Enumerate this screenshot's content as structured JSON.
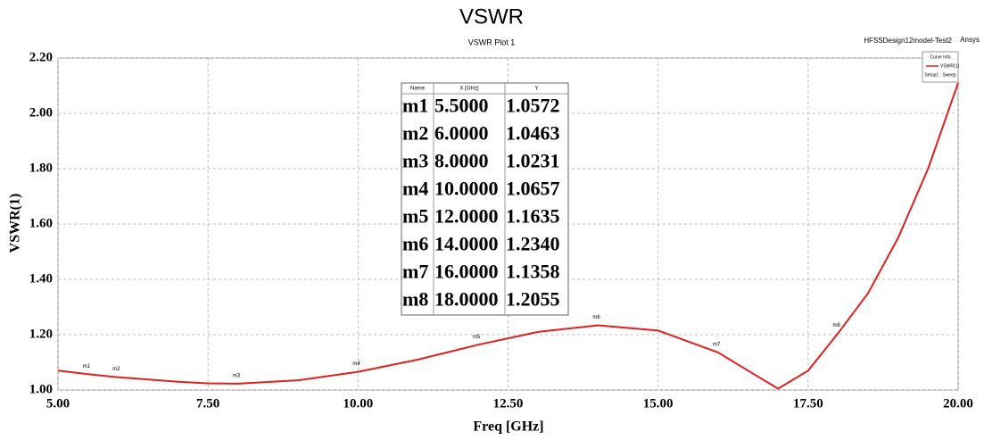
{
  "chart_data": {
    "type": "line",
    "title": "VSWR",
    "subtitle": "VSWR Plot 1",
    "design": "HFSSDesign12model-Test2",
    "brand": "Ansys",
    "xlabel": "Freq [GHz]",
    "ylabel": "VSWR(1)",
    "xlim": [
      5,
      20
    ],
    "ylim": [
      1,
      2.2
    ],
    "xticks": [
      {
        "value": 5,
        "label": "5.00"
      },
      {
        "value": 7.5,
        "label": "7.50"
      },
      {
        "value": 10,
        "label": "10.00"
      },
      {
        "value": 12.5,
        "label": "12.50"
      },
      {
        "value": 15,
        "label": "15.00"
      },
      {
        "value": 17.5,
        "label": "17.50"
      },
      {
        "value": 20,
        "label": "20.00"
      }
    ],
    "yticks": [
      {
        "value": 1,
        "label": "1.00"
      },
      {
        "value": 1.2,
        "label": "1.20"
      },
      {
        "value": 1.4,
        "label": "1.40"
      },
      {
        "value": 1.6,
        "label": "1.60"
      },
      {
        "value": 1.8,
        "label": "1.80"
      },
      {
        "value": 2,
        "label": "2.00"
      },
      {
        "value": 2.2,
        "label": "2.20"
      }
    ],
    "grid": true,
    "legend_title": "Curve Info",
    "legend_note": "Setup1 : Sweep",
    "legend_position": "upper right",
    "x": [
      5,
      5.5,
      6,
      7,
      7.5,
      8,
      9,
      10,
      11,
      12,
      13,
      14,
      15,
      16,
      16.5,
      17,
      17.5,
      18,
      18.5,
      19,
      19.5,
      20
    ],
    "series": [
      {
        "name": "VSWR(1)",
        "color": "#e0201e",
        "values": [
          1.07,
          1.0572,
          1.0463,
          1.03,
          1.024,
          1.0231,
          1.035,
          1.0657,
          1.11,
          1.1635,
          1.21,
          1.234,
          1.215,
          1.1358,
          1.07,
          1.005,
          1.07,
          1.2055,
          1.35,
          1.55,
          1.8,
          2.11
        ]
      }
    ],
    "marker_columns": [
      "Name",
      "X [GHz]",
      "Y"
    ],
    "markers": [
      {
        "name": "m1",
        "x": 5.5,
        "y": 1.0572,
        "x_label": "5.5000",
        "y_label": "1.0572"
      },
      {
        "name": "m2",
        "x": 6,
        "y": 1.0463,
        "x_label": "6.0000",
        "y_label": "1.0463"
      },
      {
        "name": "m3",
        "x": 8,
        "y": 1.0231,
        "x_label": "8.0000",
        "y_label": "1.0231"
      },
      {
        "name": "m4",
        "x": 10,
        "y": 1.0657,
        "x_label": "10.0000",
        "y_label": "1.0657"
      },
      {
        "name": "m5",
        "x": 12,
        "y": 1.1635,
        "x_label": "12.0000",
        "y_label": "1.1635"
      },
      {
        "name": "m6",
        "x": 14,
        "y": 1.234,
        "x_label": "14.0000",
        "y_label": "1.2340"
      },
      {
        "name": "m7",
        "x": 16,
        "y": 1.1358,
        "x_label": "16.0000",
        "y_label": "1.1358"
      },
      {
        "name": "m8",
        "x": 18,
        "y": 1.2055,
        "x_label": "18.0000",
        "y_label": "1.2055"
      }
    ]
  }
}
